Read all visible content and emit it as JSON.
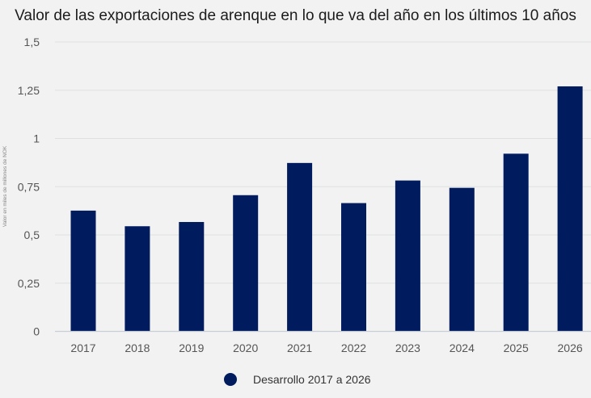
{
  "chart_data": {
    "type": "bar",
    "title": "Valor de las exportaciones de arenque en lo que va del año en los últimos 10 años",
    "xlabel": "",
    "ylabel": "Valor en miles de millones de NOK",
    "categories": [
      "2017",
      "2018",
      "2019",
      "2020",
      "2021",
      "2022",
      "2023",
      "2024",
      "2025",
      "2026"
    ],
    "series": [
      {
        "name": "Desarrollo 2017 a 2026",
        "color": "#001b5e",
        "values": [
          0.626,
          0.545,
          0.567,
          0.706,
          0.873,
          0.665,
          0.782,
          0.744,
          0.921,
          1.27
        ]
      }
    ],
    "ylim": [
      0,
      1.5
    ],
    "yticks": [
      0,
      0.25,
      0.5,
      0.75,
      1,
      1.25,
      1.5
    ],
    "ytick_labels": [
      "0",
      "0,25",
      "0,5",
      "0,75",
      "1",
      "1,25",
      "1,5"
    ],
    "grid": true,
    "legend_position": "bottom-center"
  }
}
